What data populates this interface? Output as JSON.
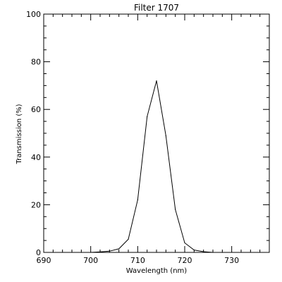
{
  "chart_data": {
    "type": "line",
    "title": "Filter 1707",
    "xlabel": "Wavelength (nm)",
    "ylabel": "Transmission (%)",
    "xlim": [
      690,
      738
    ],
    "ylim": [
      0,
      100
    ],
    "x_ticks": [
      690,
      700,
      710,
      720,
      730
    ],
    "y_ticks": [
      0,
      20,
      40,
      60,
      80,
      100
    ],
    "x_minor_step": 2,
    "y_minor_step": 5,
    "grid": false,
    "series": [
      {
        "x": [
          698,
          700,
          702,
          704,
          706,
          708,
          710,
          712,
          714,
          716,
          718,
          720,
          722,
          724,
          726,
          728
        ],
        "y": [
          0,
          0,
          0.2,
          0.5,
          1.5,
          5.5,
          22,
          57,
          72,
          49,
          18,
          4,
          1,
          0.3,
          0,
          0
        ],
        "color": "#000000"
      }
    ]
  }
}
